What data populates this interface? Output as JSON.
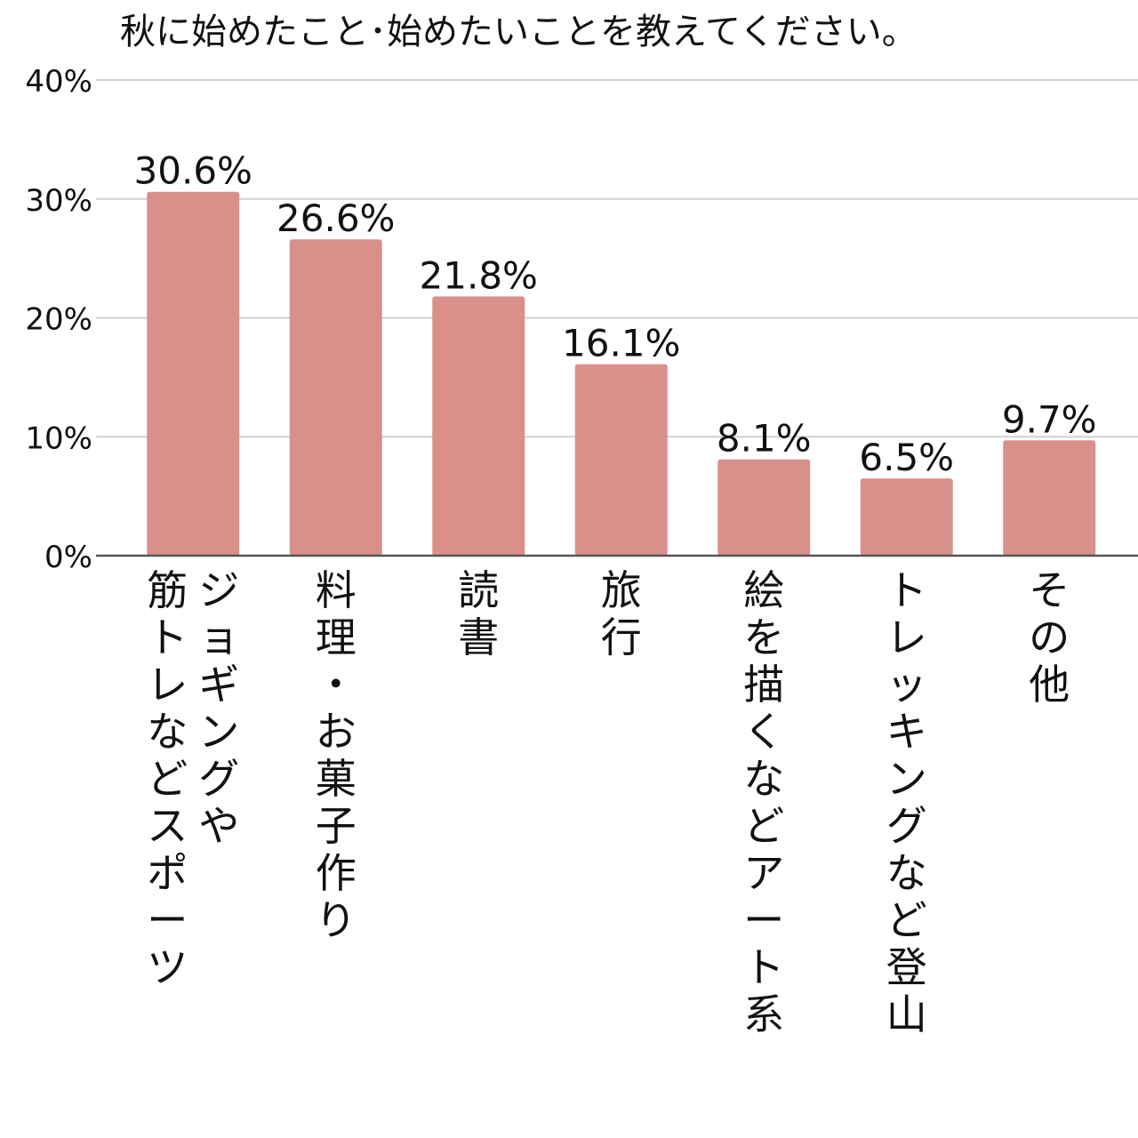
{
  "chart_data": {
    "type": "bar",
    "title": "秋に始めたこと･始めたいことを教えてください。",
    "categories": [
      "ジョギングや筋トレなどスポーツ",
      "料理・お菓子作り",
      "読書",
      "旅行",
      "絵を描くなどアート系",
      "トレッキングなど登山",
      "その他"
    ],
    "category_label_lines": [
      [
        "ジョギングや",
        "筋トレなどスポーツ"
      ],
      [
        "料理・お菓子作り"
      ],
      [
        "読書"
      ],
      [
        "旅行"
      ],
      [
        "絵を描くなどアート系"
      ],
      [
        "トレッキングなど登山"
      ],
      [
        "その他"
      ]
    ],
    "values": [
      30.6,
      26.6,
      21.8,
      16.1,
      8.1,
      6.5,
      9.7
    ],
    "data_labels": [
      "30.6%",
      "26.6%",
      "21.8%",
      "16.1%",
      "8.1%",
      "6.5%",
      "9.7%"
    ],
    "yticks": [
      0,
      10,
      20,
      30,
      40
    ],
    "ytick_labels": [
      "0%",
      "10%",
      "20%",
      "30%",
      "40%"
    ],
    "ylim": [
      0,
      40
    ],
    "xlabel": "",
    "ylabel": "",
    "grid": true,
    "bar_color": "#d9908a",
    "grid_color": "#d0d0d0",
    "axis_color": "#555555"
  }
}
